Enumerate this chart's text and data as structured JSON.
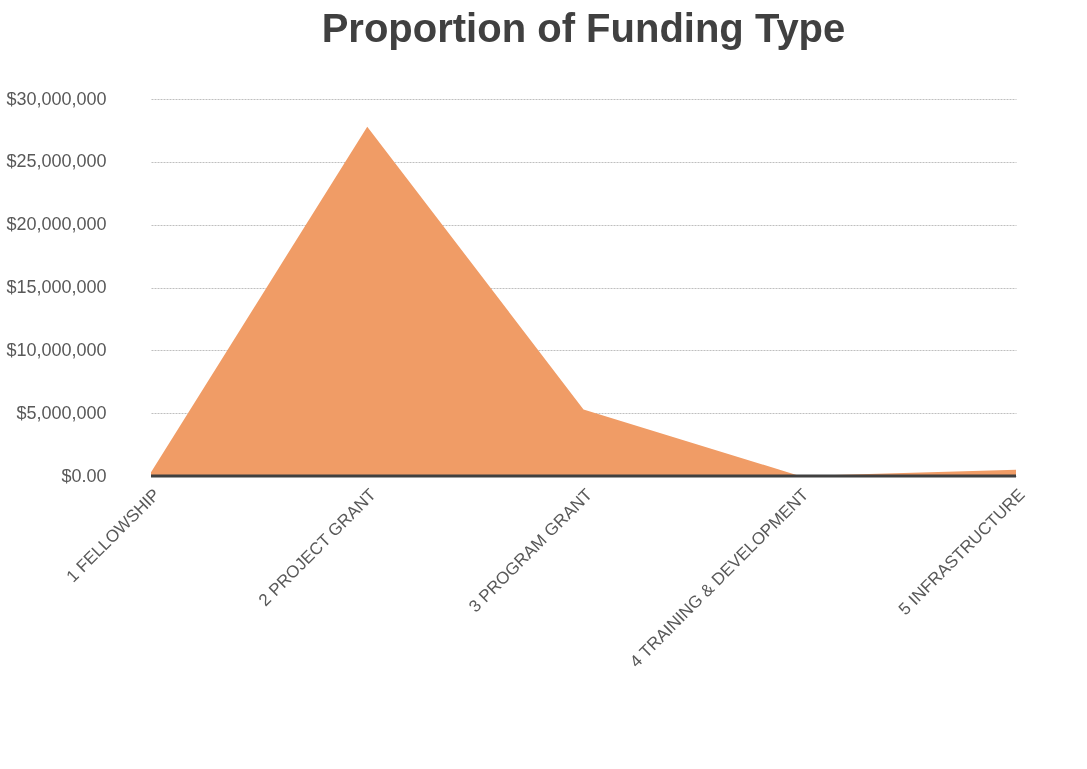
{
  "chart_data": {
    "type": "area",
    "title": "Proportion of Funding Type",
    "categories": [
      "1 FELLOWSHIP",
      "2 PROJECT GRANT",
      "3 PROGRAM GRANT",
      "4 TRAINING & DEVELOPMENT",
      "5 INFRASTRUCTURE"
    ],
    "series": [
      {
        "color": "#f09c66",
        "values": [
          300000,
          27800000,
          5300000,
          0,
          500000
        ]
      }
    ],
    "ylim": [
      0,
      30000000
    ],
    "yticks": [
      {
        "value": 0,
        "label": "$0.00"
      },
      {
        "value": 5000000,
        "label": "$5,000,000"
      },
      {
        "value": 10000000,
        "label": "$10,000,000"
      },
      {
        "value": 15000000,
        "label": "$15,000,000"
      },
      {
        "value": 20000000,
        "label": "$20,000,000"
      },
      {
        "value": 25000000,
        "label": "$25,000,000"
      },
      {
        "value": 30000000,
        "label": "$30,000,000"
      }
    ],
    "grid": "y",
    "legend": false
  }
}
